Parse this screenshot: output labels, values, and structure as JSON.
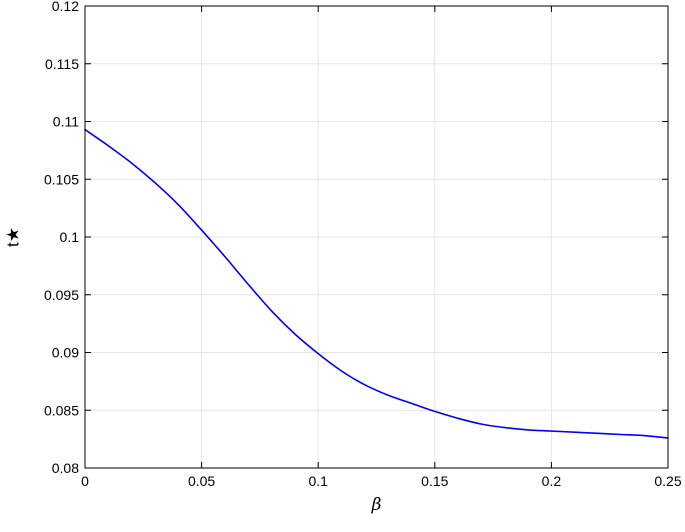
{
  "chart_data": {
    "type": "line",
    "title": "",
    "xlabel": "β",
    "ylabel": "t★",
    "xlim": [
      0,
      0.25
    ],
    "ylim": [
      0.08,
      0.12
    ],
    "x_ticks": [
      "0",
      "0.05",
      "0.1",
      "0.15",
      "0.2",
      "0.25"
    ],
    "y_ticks": [
      "0.08",
      "0.085",
      "0.09",
      "0.095",
      "0.1",
      "0.105",
      "0.11",
      "0.115",
      "0.12"
    ],
    "grid": true,
    "series": [
      {
        "color": "#0000ff",
        "x": [
          0,
          0.01,
          0.02,
          0.03,
          0.04,
          0.05,
          0.06,
          0.07,
          0.08,
          0.09,
          0.1,
          0.11,
          0.12,
          0.13,
          0.14,
          0.15,
          0.16,
          0.17,
          0.18,
          0.19,
          0.2,
          0.21,
          0.22,
          0.23,
          0.24,
          0.25
        ],
        "y": [
          0.1093,
          0.1079,
          0.1064,
          0.1047,
          0.1028,
          0.1006,
          0.0983,
          0.0959,
          0.0936,
          0.0916,
          0.0899,
          0.0884,
          0.0872,
          0.0863,
          0.0856,
          0.0849,
          0.0843,
          0.0838,
          0.0835,
          0.0833,
          0.0832,
          0.0831,
          0.083,
          0.0829,
          0.0828,
          0.0826
        ]
      }
    ]
  }
}
